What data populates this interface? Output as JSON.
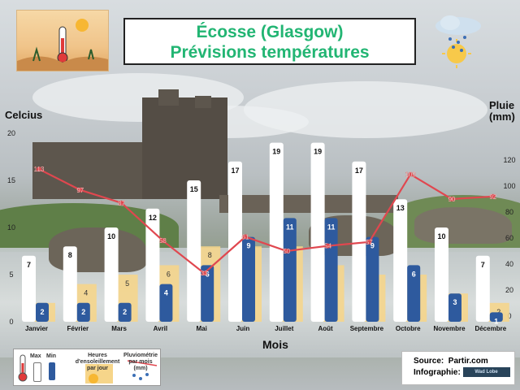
{
  "title": {
    "line1": "Écosse (Glasgow)",
    "line2": "Prévisions températures"
  },
  "axes": {
    "left_title": "Celcius",
    "right_title_line1": "Pluie",
    "right_title_line2": "(mm)",
    "x_title": "Mois"
  },
  "legend": {
    "max": "Max",
    "min": "Min",
    "sun_l1": "Heures",
    "sun_l2": "d'ensoleillement",
    "sun_l3": "par jour",
    "rain_l1": "Pluviométrie",
    "rain_l2": "par mois",
    "rain_l3": "(mm)"
  },
  "source": {
    "label": "Source:",
    "value": "Partir.com",
    "info_label": "Infographie:",
    "logo_text": "Wad Lobe"
  },
  "colors": {
    "title_green": "#22b573",
    "max_bar": "#ffffff",
    "min_bar": "#2e5a9e",
    "sun_bar": "#f6d58a",
    "rain_line": "#e0474f"
  },
  "chart_data": {
    "type": "bar",
    "categories": [
      "Janvier",
      "Février",
      "Mars",
      "Avril",
      "Mai",
      "Juin",
      "Juillet",
      "Août",
      "Septembre",
      "Octobre",
      "Novembre",
      "Décembre"
    ],
    "series": [
      {
        "name": "Max",
        "type": "bar",
        "axis": "left",
        "values": [
          7,
          8,
          10,
          12,
          15,
          17,
          19,
          19,
          17,
          13,
          10,
          7
        ]
      },
      {
        "name": "Min",
        "type": "bar",
        "axis": "left",
        "values": [
          2,
          2,
          2,
          4,
          6,
          9,
          11,
          11,
          9,
          6,
          3,
          1
        ]
      },
      {
        "name": "Heures d'ensoleillement par jour",
        "type": "bar",
        "axis": "left",
        "values": [
          2,
          4,
          5,
          6,
          8,
          8,
          8,
          6,
          5,
          5,
          3,
          2
        ]
      },
      {
        "name": "Pluviométrie par mois (mm)",
        "type": "line",
        "axis": "right",
        "values": [
          113,
          97,
          87,
          58,
          33,
          61,
          50,
          54,
          57,
          109,
          90,
          92
        ]
      }
    ],
    "left_axis": {
      "label": "Celcius",
      "ticks": [
        0,
        5,
        10,
        15,
        20
      ],
      "range": [
        0,
        20
      ]
    },
    "right_axis": {
      "label": "Pluie (mm)",
      "ticks": [
        0,
        20,
        40,
        60,
        80,
        100,
        120
      ],
      "range": [
        0,
        120
      ]
    },
    "xlabel": "Mois",
    "grid": false,
    "legend_position": "bottom-left"
  }
}
